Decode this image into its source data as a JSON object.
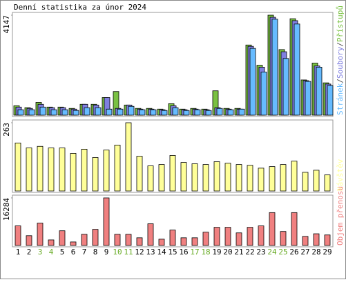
{
  "chart_data": [
    {
      "type": "bar",
      "title": "Denní statistika za únor 2024",
      "legend_separator": "/",
      "ylim": [
        0,
        4147
      ],
      "yticks": [
        4147
      ],
      "series": [
        {
          "name": "Přístupů",
          "color": "#7ac142",
          "values": [
            390,
            310,
            530,
            335,
            335,
            280,
            450,
            450,
            730,
            980,
            420,
            280,
            280,
            250,
            475,
            250,
            280,
            250,
            1010,
            280,
            280,
            2910,
            2070,
            4147,
            2720,
            4000,
            1460,
            2160,
            1340
          ]
        },
        {
          "name": "Soubory",
          "color": "#7f7fe0",
          "values": [
            335,
            280,
            450,
            310,
            310,
            250,
            450,
            420,
            730,
            280,
            420,
            250,
            250,
            225,
            390,
            225,
            250,
            225,
            310,
            250,
            250,
            2855,
            1990,
            4060,
            2630,
            3920,
            1430,
            2040,
            1290
          ]
        },
        {
          "name": "Stránek",
          "color": "#66bbff",
          "values": [
            225,
            225,
            335,
            225,
            225,
            195,
            310,
            310,
            250,
            250,
            365,
            225,
            225,
            195,
            310,
            195,
            225,
            195,
            280,
            225,
            250,
            2770,
            1790,
            3980,
            2350,
            3780,
            1400,
            1990,
            1230
          ]
        }
      ]
    },
    {
      "type": "bar",
      "ylim": [
        0,
        263
      ],
      "yticks": [
        263
      ],
      "series": [
        {
          "name": "Návštěv",
          "color": "#ffff99",
          "values": [
            185,
            166,
            172,
            166,
            166,
            145,
            161,
            129,
            158,
            177,
            263,
            134,
            97,
            102,
            137,
            110,
            105,
            102,
            113,
            107,
            102,
            99,
            88,
            94,
            102,
            115,
            72,
            80,
            62
          ]
        }
      ]
    },
    {
      "type": "bar",
      "ylim": [
        0,
        16284
      ],
      "yticks": [
        16284
      ],
      "categories": [
        "1",
        "2",
        "3",
        "4",
        "5",
        "6",
        "7",
        "8",
        "9",
        "10",
        "11",
        "12",
        "13",
        "14",
        "15",
        "16",
        "17",
        "18",
        "19",
        "20",
        "21",
        "22",
        "23",
        "24",
        "25",
        "26",
        "27",
        "28",
        "29"
      ],
      "category_colors": [
        "#000000",
        "#000000",
        "#66aa22",
        "#66aa22",
        "#000000",
        "#000000",
        "#000000",
        "#000000",
        "#000000",
        "#66aa22",
        "#66aa22",
        "#000000",
        "#000000",
        "#000000",
        "#000000",
        "#000000",
        "#66aa22",
        "#66aa22",
        "#000000",
        "#000000",
        "#000000",
        "#000000",
        "#000000",
        "#66aa22",
        "#66aa22",
        "#000000",
        "#000000",
        "#000000",
        "#000000"
      ],
      "series": [
        {
          "name": "Objem přenosu",
          "color": "#f08080",
          "values": [
            6700,
            3350,
            7660,
            1900,
            5030,
            1200,
            3830,
            5510,
            16284,
            3830,
            3830,
            2630,
            7420,
            2150,
            5270,
            2630,
            2630,
            4550,
            6220,
            6220,
            4310,
            6220,
            6700,
            11250,
            4790,
            11250,
            3100,
            4000,
            3600
          ]
        }
      ]
    }
  ]
}
